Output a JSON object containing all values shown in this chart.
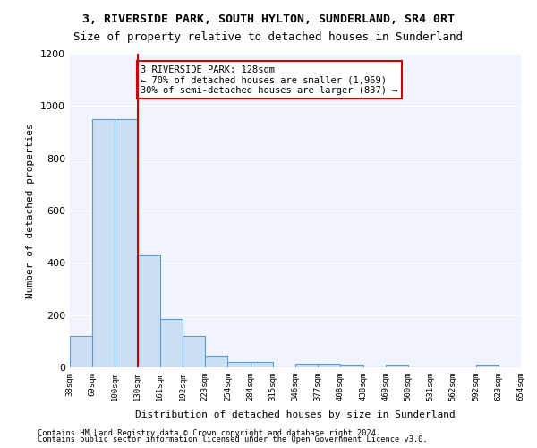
{
  "title": "3, RIVERSIDE PARK, SOUTH HYLTON, SUNDERLAND, SR4 0RT",
  "subtitle": "Size of property relative to detached houses in Sunderland",
  "xlabel": "Distribution of detached houses by size in Sunderland",
  "ylabel": "Number of detached properties",
  "bin_labels": [
    "38sqm",
    "69sqm",
    "100sqm",
    "130sqm",
    "161sqm",
    "192sqm",
    "223sqm",
    "254sqm",
    "284sqm",
    "315sqm",
    "346sqm",
    "377sqm",
    "408sqm",
    "438sqm",
    "469sqm",
    "500sqm",
    "531sqm",
    "562sqm",
    "592sqm",
    "623sqm",
    "654sqm"
  ],
  "bar_heights": [
    120,
    950,
    950,
    430,
    185,
    120,
    45,
    20,
    20,
    0,
    15,
    15,
    10,
    0,
    10,
    0,
    0,
    0,
    10,
    0
  ],
  "bar_color": "#cce0f5",
  "bar_edge_color": "#5b9bd5",
  "vline_x": 3,
  "vline_color": "#cc0000",
  "annotation_text": "3 RIVERSIDE PARK: 128sqm\n← 70% of detached houses are smaller (1,969)\n30% of semi-detached houses are larger (837) →",
  "annotation_box_color": "#cc0000",
  "ylim": [
    0,
    1200
  ],
  "yticks": [
    0,
    200,
    400,
    600,
    800,
    1000,
    1200
  ],
  "footer_line1": "Contains HM Land Registry data © Crown copyright and database right 2024.",
  "footer_line2": "Contains public sector information licensed under the Open Government Licence v3.0.",
  "bg_color": "#f0f4ff",
  "grid_color": "#ffffff"
}
